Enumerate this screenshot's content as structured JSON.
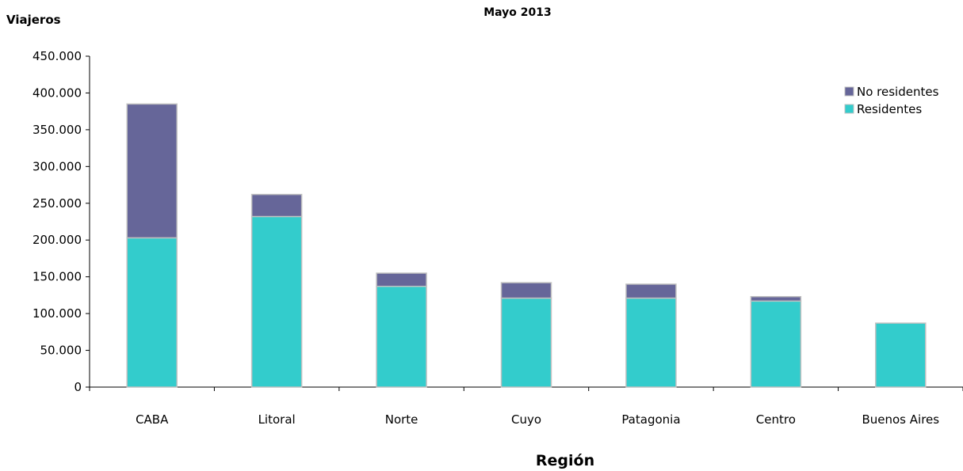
{
  "chart_data": {
    "type": "bar",
    "stacked": true,
    "title": "Mayo 2013",
    "ylabel": "Viajeros",
    "xlabel": "Región",
    "categories": [
      "CABA",
      "Litoral",
      "Norte",
      "Cuyo",
      "Patagonia",
      "Centro",
      "Buenos Aires"
    ],
    "series": [
      {
        "name": "Residentes",
        "color": "#33CCCC",
        "values": [
          203000,
          232000,
          137000,
          121000,
          121000,
          117000,
          87000
        ]
      },
      {
        "name": "No residentes",
        "color": "#666699",
        "values": [
          182000,
          30000,
          18000,
          21000,
          19000,
          6000,
          0
        ]
      }
    ],
    "ylim": [
      0,
      450000
    ],
    "yticks": [
      0,
      50000,
      100000,
      150000,
      200000,
      250000,
      300000,
      350000,
      400000,
      450000
    ],
    "ytick_labels": [
      "0",
      "50.000",
      "100.000",
      "150.000",
      "200.000",
      "250.000",
      "300.000",
      "350.000",
      "400.000",
      "450.000"
    ],
    "legend": {
      "position": "top-right",
      "entries": [
        "No residentes",
        "Residentes"
      ]
    },
    "grid": false
  }
}
